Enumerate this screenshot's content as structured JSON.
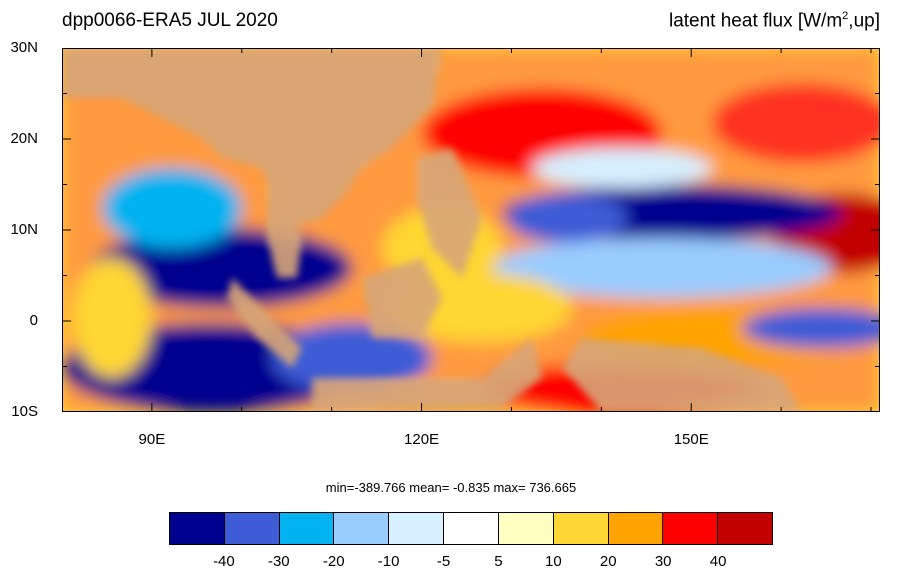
{
  "title_left": "dpp0066-ERA5  JUL 2020",
  "title_right": {
    "prefix": "latent heat flux [W/m",
    "sup": "2",
    "suffix": ",up]"
  },
  "y_axis": {
    "labels": [
      "30N",
      "20N",
      "10N",
      "0",
      "10S"
    ],
    "values": [
      30,
      20,
      10,
      0,
      -10
    ]
  },
  "x_axis": {
    "labels": [
      "90E",
      "120E",
      "150E"
    ],
    "values": [
      90,
      120,
      150
    ]
  },
  "extent": {
    "lon": [
      80,
      171
    ],
    "lat": [
      -10,
      30
    ]
  },
  "stats_text": "min=-389.766  mean=  -0.835  max= 736.665",
  "colorbar": {
    "colors": [
      "#00008f",
      "#3d5cd6",
      "#00b2f0",
      "#99ccff",
      "#d6f0ff",
      "#ffffff",
      "#ffffc2",
      "#ffd633",
      "#ffa300",
      "#ff0000",
      "#c20000"
    ],
    "labels": [
      "-40",
      "-30",
      "-20",
      "-10",
      "-5",
      "5",
      "10",
      "20",
      "30",
      "40"
    ]
  },
  "land_color": "#b8905a"
}
